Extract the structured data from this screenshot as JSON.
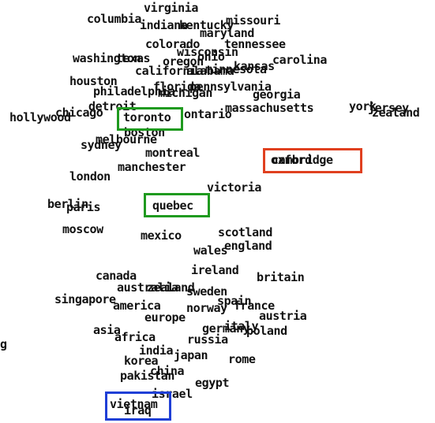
{
  "words": [
    "virginia",
    "columbia",
    "indiana",
    "kentucky",
    "missouri",
    "maryland",
    "colorado",
    "tennessee",
    "wisconsin",
    "washington",
    "texas",
    "oregon",
    "ohio",
    "carolina",
    "kansas",
    "california",
    "alabama",
    "minnesota",
    "houston",
    "florida",
    "pennsylvania",
    "philadelphia",
    "michigan",
    "georgia",
    "detroit",
    "massachusetts",
    "york",
    "jersey",
    "zealand",
    "hollywood",
    "chicago",
    "toronto",
    "ontario",
    "boston",
    "melbourne",
    "sydney",
    "montreal",
    "cambridge",
    "oxford",
    "manchester",
    "london",
    "victoria",
    "berlin",
    "paris",
    "quebec",
    "moscow",
    "mexico",
    "scotland",
    "wales",
    "england",
    "ireland",
    "canada",
    "britain",
    "australia",
    "zealand",
    "sweden",
    "singapore",
    "spain",
    "america",
    "norway",
    "france",
    "europe",
    "austria",
    "asia",
    "germany",
    "italy",
    "poland",
    "africa",
    "russia",
    "india",
    "japan",
    "korea",
    "rome",
    "pakistan",
    "china",
    "egypt",
    "israel",
    "vietnam",
    "iraq",
    "g"
  ],
  "highlights": [
    {
      "label": "toronto",
      "color": "#1f9a1f"
    },
    {
      "label": "cambridge",
      "color": "#e0401f"
    },
    {
      "label": "quebec",
      "color": "#1f9a1f"
    },
    {
      "label": "vietnam",
      "color": "#1f3fd6"
    }
  ]
}
